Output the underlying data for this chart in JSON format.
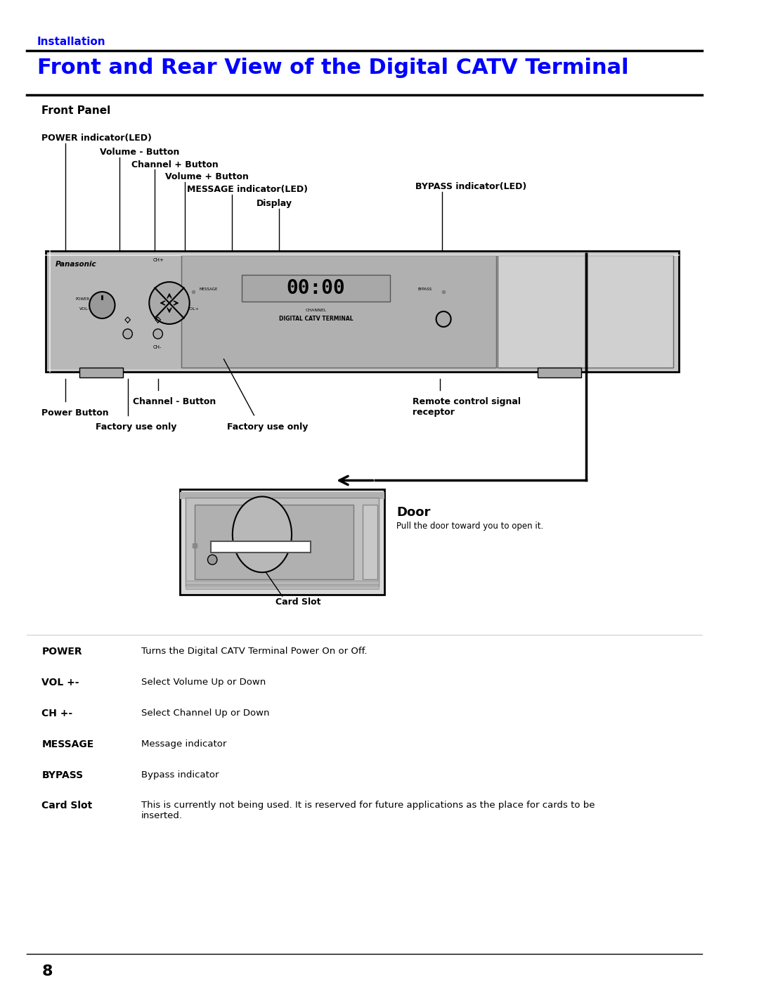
{
  "page_bg": "#ffffff",
  "title_section": "Installation",
  "title_main": "Front and Rear View of the Digital CATV Terminal",
  "subtitle": "Front Panel",
  "blue_color": "#0000ff",
  "black_color": "#000000",
  "gray_device": "#c8c8c8",
  "gray_dark": "#888888",
  "gray_mid": "#aaaaaa",
  "label_size": 9.0,
  "title_size": 22,
  "install_size": 11,
  "panel_size": 11,
  "table_items": [
    [
      "POWER",
      "Turns the Digital CATV Terminal Power On or Off."
    ],
    [
      "VOL +-",
      "Select Volume Up or Down"
    ],
    [
      "CH +-",
      "Select Channel Up or Down"
    ],
    [
      "MESSAGE",
      "Message indicator"
    ],
    [
      "BYPASS",
      "Bypass indicator"
    ],
    [
      "Card Slot",
      "This is currently not being used. It is reserved for future applications as the place for cards to be\ninserted."
    ]
  ]
}
